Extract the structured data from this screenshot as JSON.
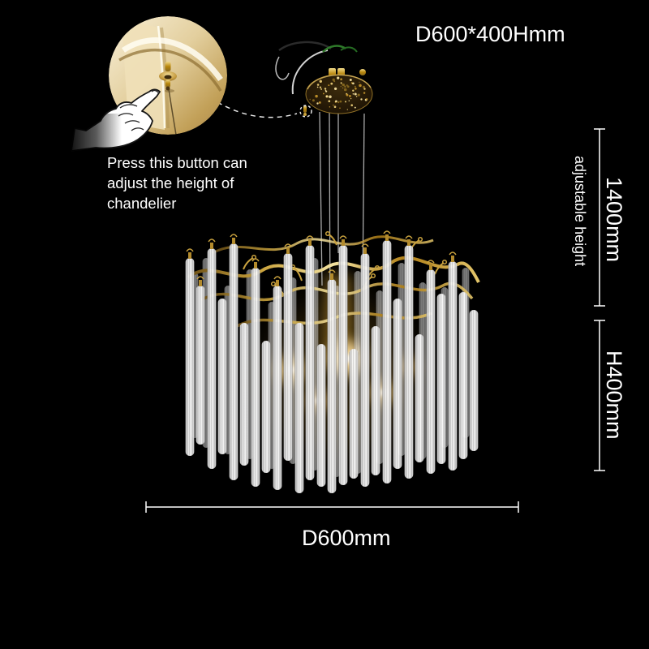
{
  "image": {
    "subject": "Gold branch crystal chandelier product photo",
    "background": "#000000"
  },
  "labels": {
    "size": "D600*400Hmm",
    "adjustable_height_value": "1400mm",
    "adjustable_height_note": "adjustable height",
    "fixture_height": "H400mm",
    "diameter": "D600mm"
  },
  "inset": {
    "caption_lines": [
      "Press this button can",
      "adjust the height of",
      "chandelier"
    ]
  },
  "colors": {
    "text": "#ffffff",
    "dimension_line": "#ffffff",
    "gold_accent": "#c9a23f",
    "canopy_gold": "#d9c191",
    "glow_warm": "#ffdf9e"
  }
}
